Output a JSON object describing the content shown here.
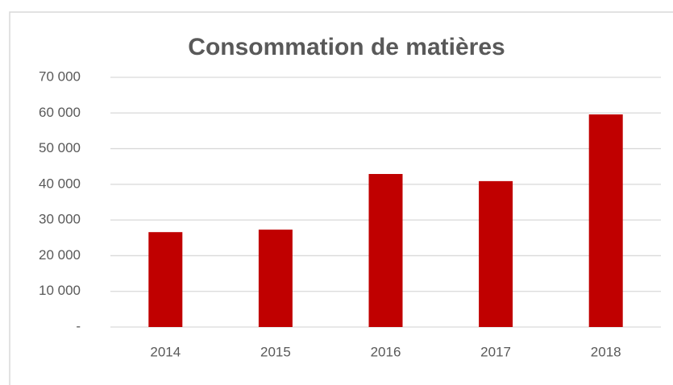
{
  "chart_data": {
    "type": "bar",
    "title": "Consommation de matières",
    "categories": [
      "2014",
      "2015",
      "2016",
      "2017",
      "2018"
    ],
    "values": [
      26600,
      27300,
      42900,
      40900,
      59600
    ],
    "color": "#c00000",
    "ylim": [
      0,
      70000
    ],
    "yticks": [
      {
        "value": 0,
        "label": "-"
      },
      {
        "value": 10000,
        "label": "10 000"
      },
      {
        "value": 20000,
        "label": "20 000"
      },
      {
        "value": 30000,
        "label": "30 000"
      },
      {
        "value": 40000,
        "label": "40 000"
      },
      {
        "value": 50000,
        "label": "50 000"
      },
      {
        "value": 60000,
        "label": "60 000"
      },
      {
        "value": 70000,
        "label": "70 000"
      }
    ],
    "grid": true
  }
}
